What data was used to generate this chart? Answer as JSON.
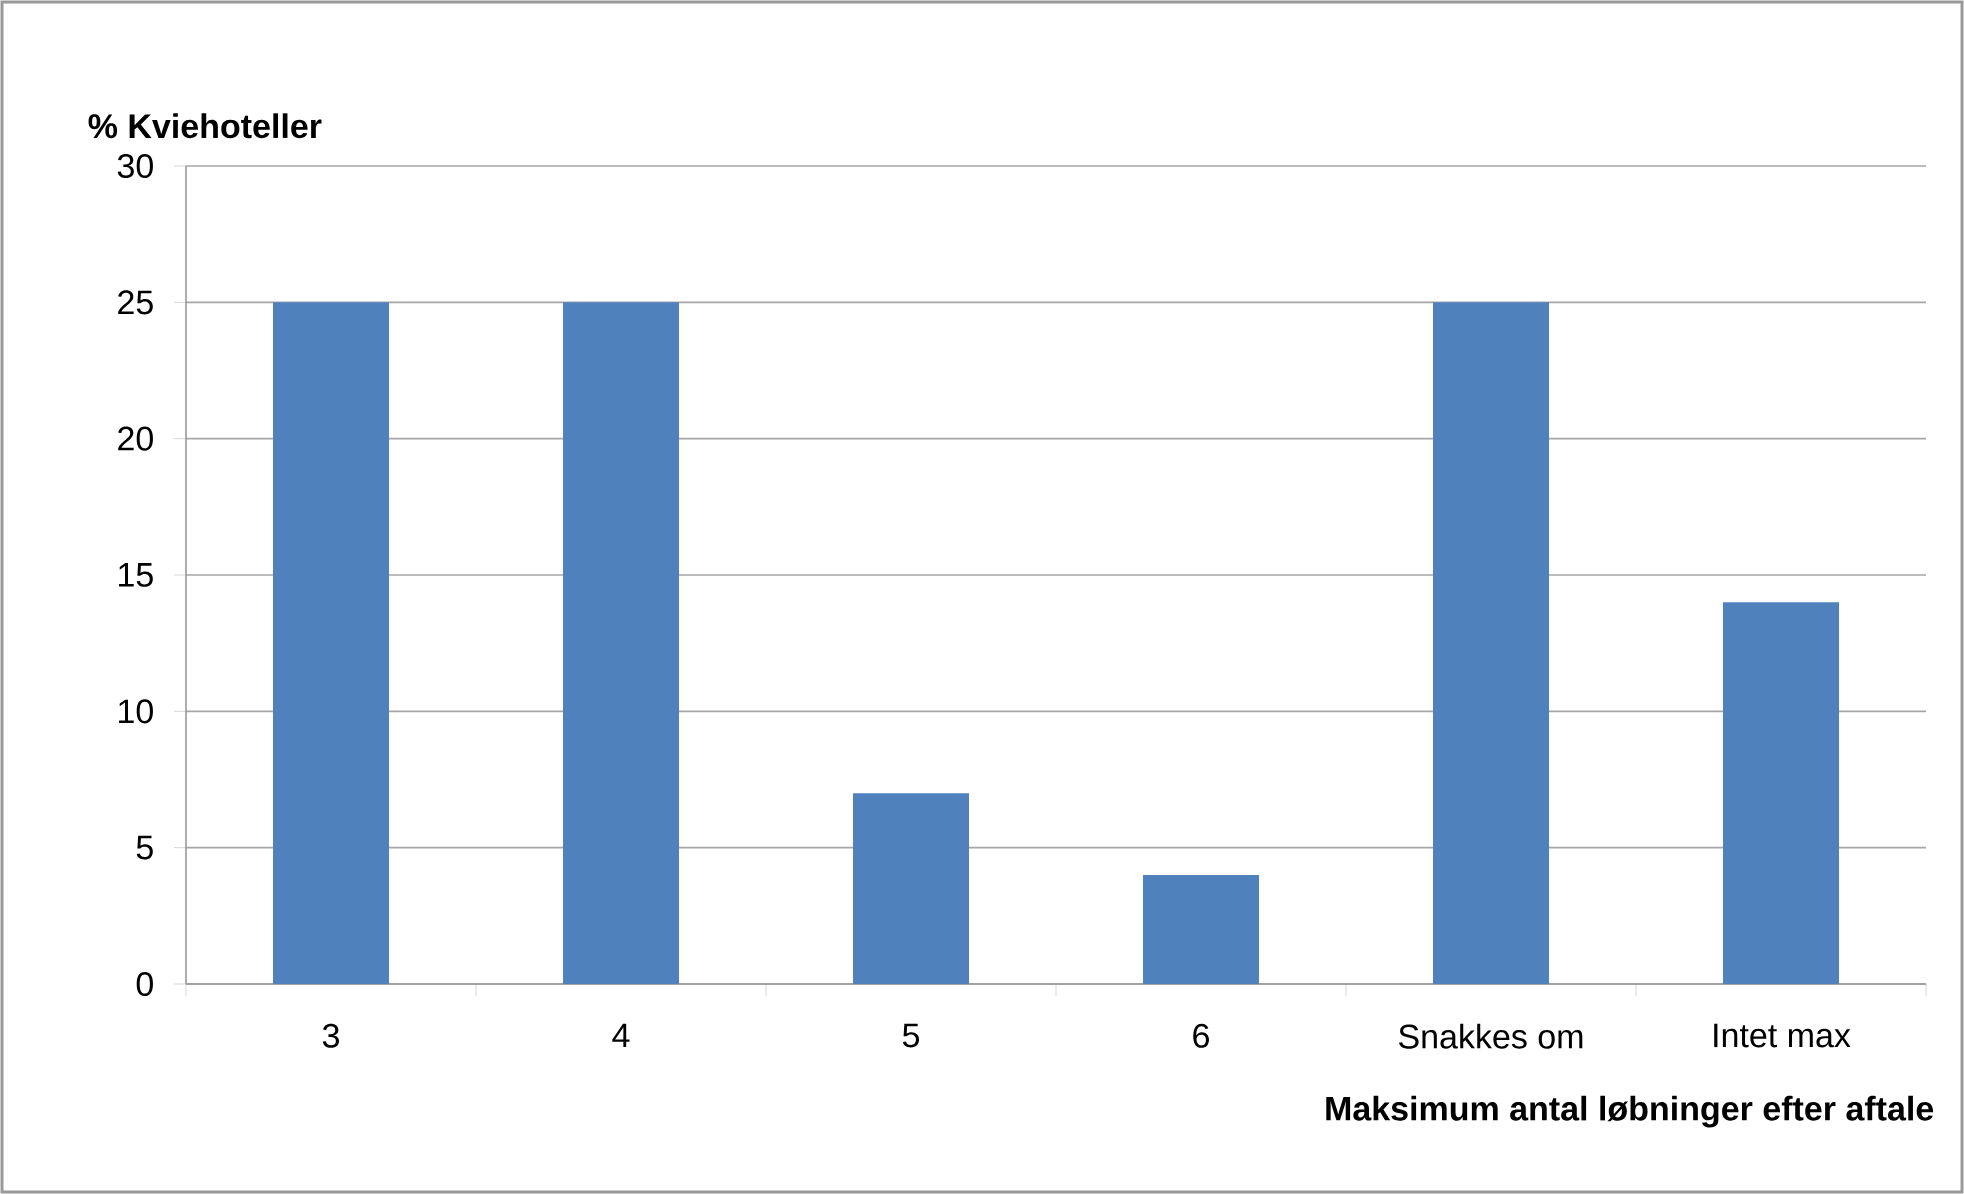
{
  "chart_data": {
    "type": "bar",
    "xlabel": "Maksimum antal løbninger efter aftale",
    "ylabel": "% Kviehoteller",
    "categories": [
      "3",
      "4",
      "5",
      "6",
      "Snakkes om",
      "Intet max"
    ],
    "values": [
      25,
      25,
      7,
      4,
      25,
      14
    ],
    "color": "#4f81bd",
    "ylim": [
      0,
      30
    ],
    "yticks": [
      0,
      5,
      10,
      15,
      20,
      25,
      30
    ],
    "grid": "y"
  }
}
